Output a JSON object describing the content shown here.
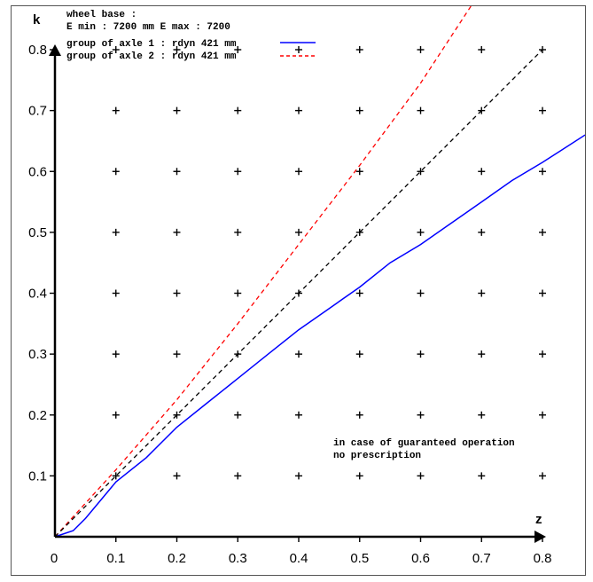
{
  "chart_data": {
    "type": "line",
    "xlabel": "z",
    "ylabel": "k",
    "xlim": [
      0,
      0.8
    ],
    "ylim": [
      0,
      0.8
    ],
    "x_ticks": [
      "0",
      "0.1",
      "0.2",
      "0.3",
      "0.4",
      "0.5",
      "0.6",
      "0.7",
      "0.8"
    ],
    "y_ticks": [
      "0.1",
      "0.2",
      "0.3",
      "0.4",
      "0.5",
      "0.6",
      "0.7",
      "0.8"
    ],
    "grid_markers": "plus",
    "header": {
      "line1": "wheel base :",
      "line2": "E min : 7200 mm  E max : 7200"
    },
    "series": [
      {
        "name": "group of axle 1 : rdyn 421 mm",
        "color": "#0000ff",
        "style": "solid",
        "x": [
          0.0,
          0.03,
          0.05,
          0.1,
          0.15,
          0.2,
          0.25,
          0.3,
          0.35,
          0.4,
          0.45,
          0.5,
          0.55,
          0.6,
          0.65,
          0.7,
          0.75,
          0.8,
          0.87
        ],
        "y": [
          0.0,
          0.01,
          0.03,
          0.09,
          0.13,
          0.18,
          0.22,
          0.26,
          0.3,
          0.34,
          0.375,
          0.41,
          0.45,
          0.48,
          0.515,
          0.55,
          0.585,
          0.615,
          0.66
        ]
      },
      {
        "name": "group of axle 2 : rdyn 421 mm",
        "color": "#ff0000",
        "style": "dashed",
        "x": [
          0.0,
          0.1,
          0.2,
          0.3,
          0.4,
          0.5,
          0.6,
          0.685
        ],
        "y": [
          0.0,
          0.11,
          0.225,
          0.35,
          0.48,
          0.61,
          0.745,
          0.875
        ]
      },
      {
        "name": "",
        "color": "#000000",
        "style": "dashed",
        "x": [
          0.0,
          0.8
        ],
        "y": [
          0.0,
          0.8
        ]
      }
    ],
    "annotations": [
      "in case of guaranteed operation",
      "no prescription"
    ]
  }
}
